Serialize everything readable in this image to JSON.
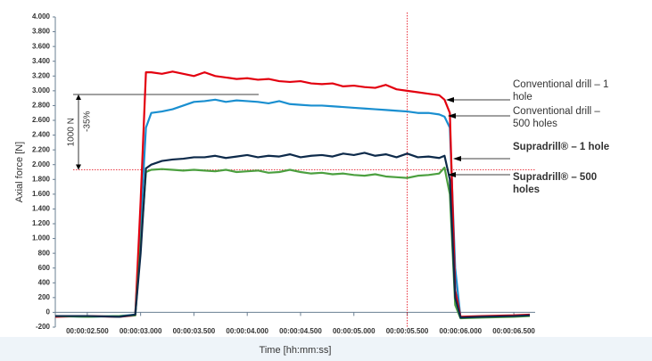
{
  "chart_data": {
    "type": "line",
    "y_label": "Axial force [N]",
    "x_label": "Time [hh:mm:ss]",
    "x": [
      2.2,
      2.5,
      2.8,
      2.95,
      3.0,
      3.05,
      3.1,
      3.2,
      3.3,
      3.4,
      3.5,
      3.6,
      3.7,
      3.8,
      3.9,
      4.0,
      4.1,
      4.2,
      4.3,
      4.4,
      4.5,
      4.6,
      4.7,
      4.8,
      4.9,
      5.0,
      5.1,
      5.2,
      5.3,
      5.4,
      5.5,
      5.6,
      5.7,
      5.8,
      5.85,
      5.9,
      5.95,
      6.0,
      6.2,
      6.5,
      6.65
    ],
    "series": [
      {
        "name": "Conventional drill – 1 hole",
        "color": "#e3000f",
        "values": [
          -60,
          -50,
          -60,
          -40,
          1500,
          3250,
          3250,
          3230,
          3260,
          3230,
          3200,
          3250,
          3200,
          3180,
          3160,
          3170,
          3150,
          3160,
          3130,
          3120,
          3130,
          3100,
          3090,
          3100,
          3060,
          3070,
          3050,
          3040,
          3080,
          3020,
          3000,
          2980,
          2960,
          2940,
          2880,
          2700,
          300,
          -60,
          -50,
          -40,
          -30
        ]
      },
      {
        "name": "Conventional drill – 500 holes",
        "color": "#1a8fd0",
        "values": [
          -50,
          -60,
          -50,
          -30,
          1200,
          2500,
          2700,
          2720,
          2750,
          2800,
          2850,
          2860,
          2880,
          2850,
          2870,
          2860,
          2850,
          2830,
          2860,
          2820,
          2810,
          2800,
          2800,
          2790,
          2780,
          2770,
          2760,
          2750,
          2740,
          2730,
          2720,
          2700,
          2700,
          2680,
          2650,
          2500,
          600,
          -70,
          -60,
          -50,
          -40
        ]
      },
      {
        "name": "Supradrill® – 1 hole",
        "color": "#0d2a4a",
        "values": [
          -50,
          -50,
          -60,
          -30,
          800,
          1950,
          2000,
          2050,
          2070,
          2080,
          2100,
          2100,
          2120,
          2090,
          2110,
          2130,
          2100,
          2120,
          2110,
          2140,
          2100,
          2120,
          2130,
          2110,
          2150,
          2130,
          2160,
          2120,
          2140,
          2100,
          2150,
          2100,
          2110,
          2090,
          2120,
          1800,
          200,
          -70,
          -60,
          -50,
          -40
        ]
      },
      {
        "name": "Supradrill® – 500 holes",
        "color": "#4ca040",
        "values": [
          -50,
          -60,
          -50,
          -40,
          900,
          1900,
          1930,
          1940,
          1930,
          1920,
          1930,
          1920,
          1910,
          1930,
          1900,
          1910,
          1920,
          1890,
          1900,
          1930,
          1900,
          1880,
          1890,
          1870,
          1880,
          1860,
          1850,
          1870,
          1840,
          1830,
          1820,
          1850,
          1860,
          1880,
          1960,
          1600,
          100,
          -80,
          -70,
          -60,
          -50
        ]
      }
    ],
    "xlim": [
      2.2,
      6.7
    ],
    "xticks": [
      {
        "value": 2.5,
        "label": "00:00:02.500"
      },
      {
        "value": 3.0,
        "label": "00:00:03.000"
      },
      {
        "value": 3.5,
        "label": "00:00:03.500"
      },
      {
        "value": 4.0,
        "label": "00:00:04.000"
      },
      {
        "value": 4.5,
        "label": "00:00:04.500"
      },
      {
        "value": 5.0,
        "label": "00:00:05.000"
      },
      {
        "value": 5.5,
        "label": "00:00:05.500"
      },
      {
        "value": 6.0,
        "label": "00:00:06.000"
      },
      {
        "value": 6.5,
        "label": "00:00:06.500"
      }
    ],
    "ylim": [
      -200,
      4000
    ],
    "yticks": [
      -200,
      0,
      200,
      400,
      600,
      800,
      {
        "value": 1000,
        "label": "1.000"
      },
      {
        "value": 1200,
        "label": "1.200"
      },
      {
        "value": 1400,
        "label": "1.400"
      },
      {
        "value": 1600,
        "label": "1.600"
      },
      {
        "value": 1800,
        "label": "1.800"
      },
      {
        "value": 2000,
        "label": "2.000"
      },
      {
        "value": 2200,
        "label": "2.200"
      },
      {
        "value": 2400,
        "label": "2.400"
      },
      {
        "value": 2600,
        "label": "2.600"
      },
      {
        "value": 2800,
        "label": "2.800"
      },
      {
        "value": 3000,
        "label": "3.000"
      },
      {
        "value": 3200,
        "label": "3.200"
      },
      {
        "value": 3400,
        "label": "3.400"
      },
      {
        "value": 3600,
        "label": "3.600"
      },
      {
        "value": 3800,
        "label": "3.800"
      },
      {
        "value": 4000,
        "label": "4.000"
      }
    ],
    "reference_lines": {
      "upper_y": 2950,
      "lower_y": 1930,
      "x": 5.5
    },
    "annotations": {
      "difference": "1000 N",
      "reduction": "-35%"
    }
  }
}
